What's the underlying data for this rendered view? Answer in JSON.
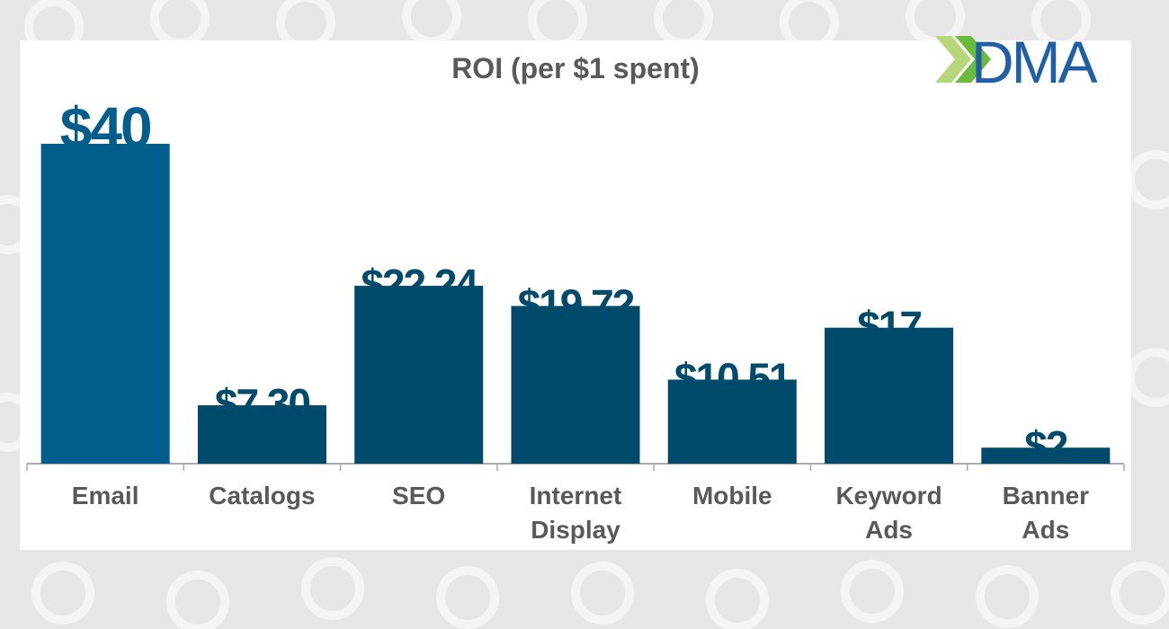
{
  "chart_data": {
    "type": "bar",
    "title": "ROI (per $1 spent)",
    "categories": [
      "Email",
      "Catalogs",
      "SEO",
      "Internet Display",
      "Mobile",
      "Keyword Ads",
      "Banner Ads"
    ],
    "values": [
      40,
      7.3,
      22.24,
      19.72,
      10.51,
      17,
      2
    ],
    "value_labels": [
      "$40",
      "$7.30",
      "$22.24",
      "$19.72",
      "$10.51",
      "$17",
      "$2"
    ],
    "colors": [
      "#005d8c",
      "#004a6b",
      "#004a6b",
      "#004a6b",
      "#004a6b",
      "#004a6b",
      "#004a6b"
    ],
    "ylim": [
      0,
      40
    ]
  },
  "logo": {
    "text": "DMA"
  }
}
